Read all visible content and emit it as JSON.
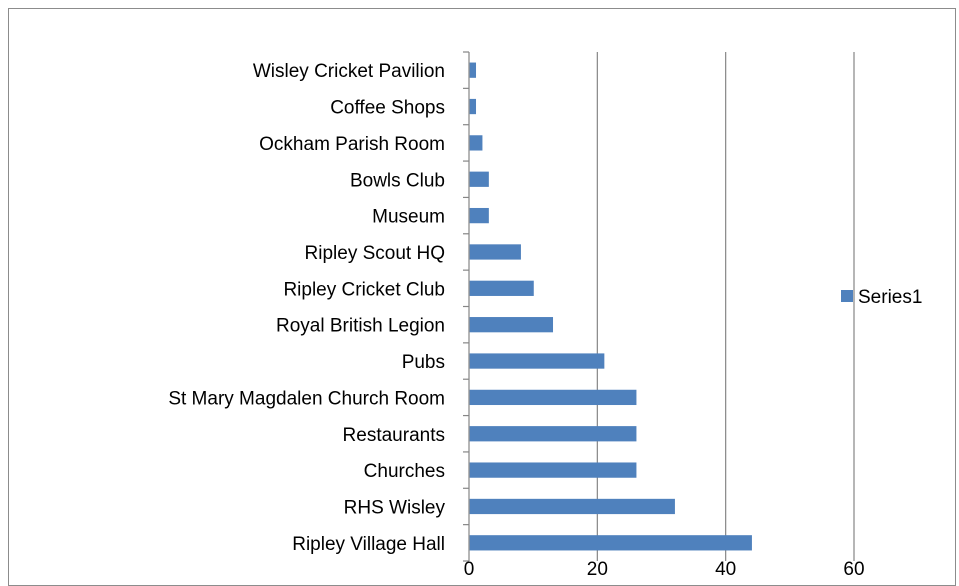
{
  "chart_data": {
    "type": "bar",
    "orientation": "horizontal",
    "categories": [
      "Ripley Village Hall",
      "RHS Wisley",
      "Churches",
      "Restaurants",
      "St Mary Magdalen Church Room",
      "Pubs",
      "Royal British Legion",
      "Ripley Cricket Club",
      "Ripley Scout HQ",
      "Museum",
      "Bowls Club",
      "Ockham Parish Room",
      "Coffee Shops",
      "Wisley Cricket Pavilion"
    ],
    "series": [
      {
        "name": "Series1",
        "values": [
          44,
          32,
          26,
          26,
          26,
          21,
          13,
          10,
          8,
          3,
          3,
          2,
          1,
          1
        ]
      }
    ],
    "xlim": [
      0,
      60
    ],
    "xticks": [
      "0",
      "20",
      "40",
      "60"
    ],
    "grid": "vertical",
    "legend": "right",
    "colors": {
      "bar": "#4f81bd",
      "grid": "#868686",
      "axis": "#868686"
    }
  }
}
